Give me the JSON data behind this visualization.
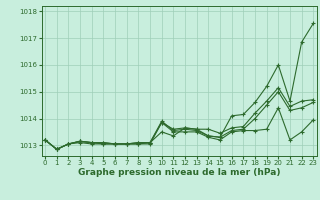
{
  "title": "",
  "xlabel": "Graphe pression niveau de la mer (hPa)",
  "x": [
    0,
    1,
    2,
    3,
    4,
    5,
    6,
    7,
    8,
    9,
    10,
    11,
    12,
    13,
    14,
    15,
    16,
    17,
    18,
    19,
    20,
    21,
    22,
    23
  ],
  "line1": [
    1013.2,
    1012.85,
    1013.05,
    1013.15,
    1013.1,
    1013.1,
    1013.05,
    1013.05,
    1013.1,
    1013.1,
    1013.85,
    1013.6,
    1013.65,
    1013.6,
    1013.35,
    1013.3,
    1014.1,
    1014.15,
    1014.6,
    1015.2,
    1016.0,
    1014.65,
    1016.85,
    1017.55
  ],
  "line2": [
    1013.2,
    1012.85,
    1013.05,
    1013.15,
    1013.1,
    1013.1,
    1013.05,
    1013.05,
    1013.1,
    1013.1,
    1013.5,
    1013.35,
    1013.65,
    1013.6,
    1013.6,
    1013.45,
    1013.65,
    1013.7,
    1014.2,
    1014.65,
    1015.15,
    1014.45,
    1014.65,
    1014.7
  ],
  "line3": [
    1013.2,
    1012.85,
    1013.05,
    1013.15,
    1013.1,
    1013.05,
    1013.05,
    1013.05,
    1013.05,
    1013.1,
    1013.9,
    1013.55,
    1013.6,
    1013.55,
    1013.35,
    1013.3,
    1013.55,
    1013.6,
    1014.0,
    1014.5,
    1015.0,
    1014.3,
    1014.4,
    1014.6
  ],
  "line4": [
    1013.2,
    1012.85,
    1013.05,
    1013.1,
    1013.05,
    1013.05,
    1013.05,
    1013.05,
    1013.05,
    1013.05,
    1013.85,
    1013.5,
    1013.5,
    1013.5,
    1013.3,
    1013.2,
    1013.5,
    1013.55,
    1013.55,
    1013.6,
    1014.4,
    1013.2,
    1013.5,
    1013.95
  ],
  "line_color": "#2d6a2d",
  "bg_color": "#c8eedd",
  "grid_color": "#9fcfb8",
  "ylim": [
    1012.6,
    1018.2
  ],
  "xlim": [
    -0.3,
    23.3
  ],
  "yticks": [
    1013,
    1014,
    1015,
    1016,
    1017,
    1018
  ],
  "xticks": [
    0,
    1,
    2,
    3,
    4,
    5,
    6,
    7,
    8,
    9,
    10,
    11,
    12,
    13,
    14,
    15,
    16,
    17,
    18,
    19,
    20,
    21,
    22,
    23
  ],
  "marker_size": 2.5,
  "line_width": 0.8,
  "xlabel_fontsize": 6.5,
  "tick_fontsize": 5.0
}
